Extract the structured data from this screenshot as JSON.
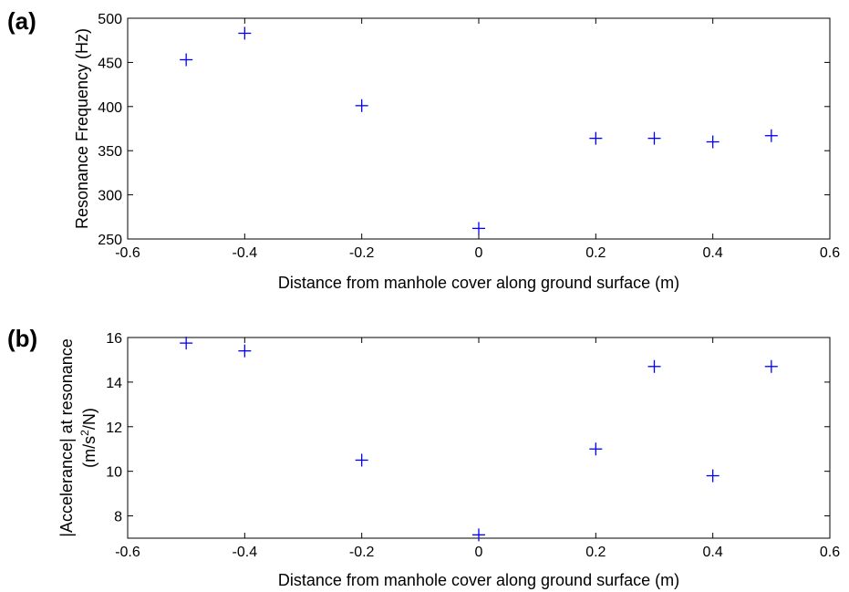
{
  "chart_data": [
    {
      "type": "scatter",
      "panel_label": "(a)",
      "xlabel": "Distance from manhole cover along ground surface (m)",
      "ylabel": "Resonance Frequency (Hz)",
      "xlim": [
        -0.6,
        0.6
      ],
      "ylim": [
        250,
        500
      ],
      "xticks": [
        "-0.6",
        "-0.4",
        "-0.2",
        "0",
        "0.2",
        "0.4",
        "0.6"
      ],
      "yticks": [
        "250",
        "300",
        "350",
        "400",
        "450",
        "500"
      ],
      "marker": "+",
      "marker_color": "#0000ff",
      "grid": false,
      "x": [
        -0.5,
        -0.4,
        -0.2,
        0,
        0.2,
        0.3,
        0.4,
        0.5
      ],
      "y": [
        453,
        483,
        401,
        262,
        364,
        364,
        360,
        367
      ]
    },
    {
      "type": "scatter",
      "panel_label": "(b)",
      "xlabel": "Distance from manhole cover along ground surface (m)",
      "ylabel": "|Accelerance| at resonance",
      "ylabel_unit": "(m/s",
      "ylabel_unit_sup": "2",
      "ylabel_unit_tail": "/N)",
      "xlim": [
        -0.6,
        0.6
      ],
      "ylim": [
        7,
        16
      ],
      "xticks": [
        "-0.6",
        "-0.4",
        "-0.2",
        "0",
        "0.2",
        "0.4",
        "0.6"
      ],
      "yticks": [
        "8",
        "10",
        "12",
        "14",
        "16"
      ],
      "marker": "+",
      "marker_color": "#0000ff",
      "grid": false,
      "x": [
        -0.5,
        -0.4,
        -0.2,
        0,
        0.2,
        0.3,
        0.4,
        0.5
      ],
      "y": [
        15.75,
        15.4,
        10.5,
        7.15,
        11.0,
        14.7,
        9.8,
        14.7
      ]
    }
  ]
}
